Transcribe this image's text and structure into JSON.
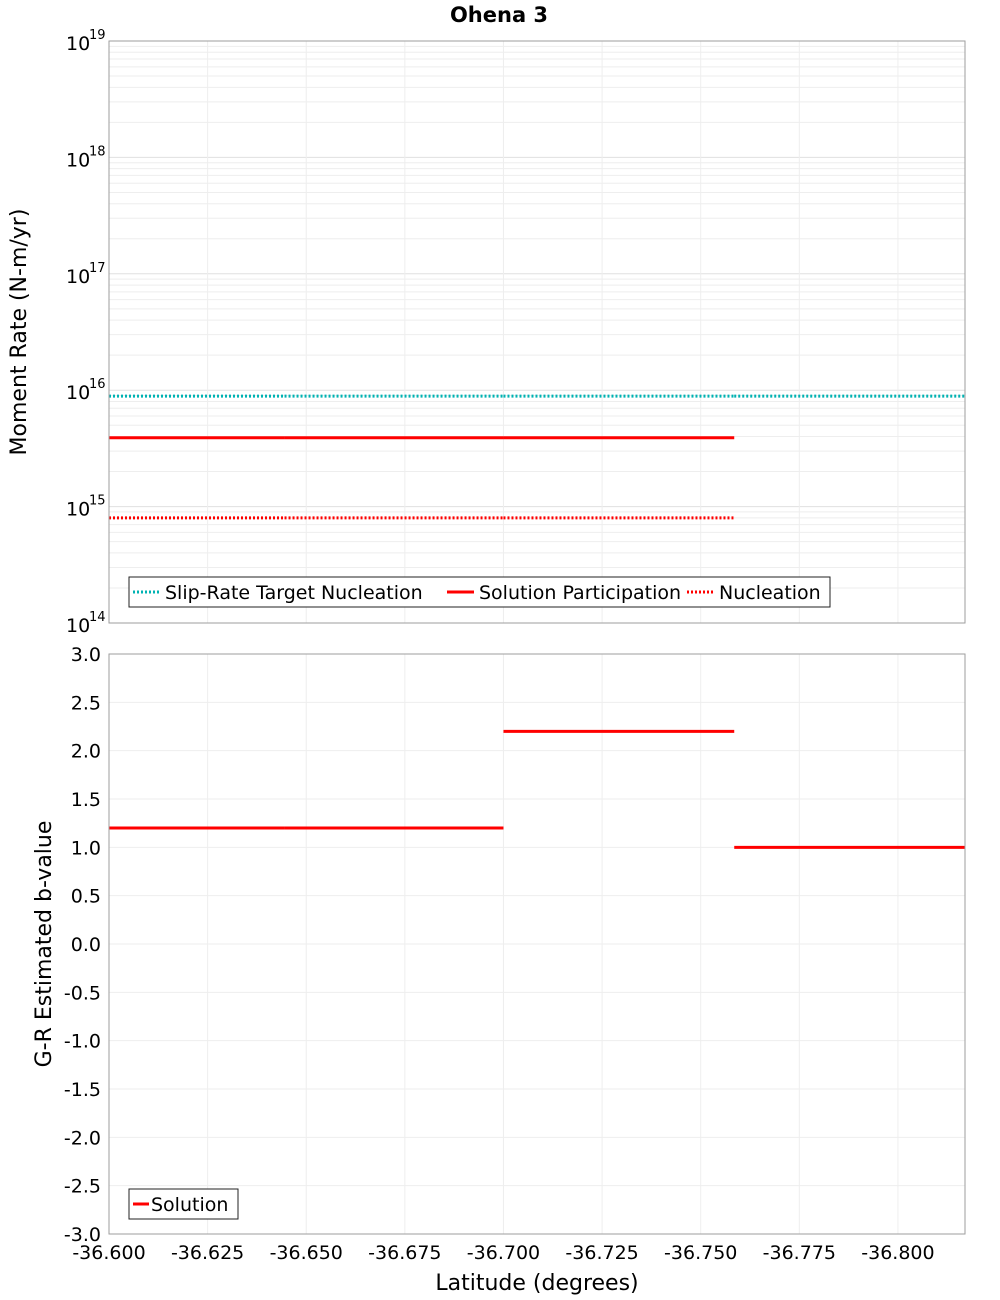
{
  "chart_data": [
    {
      "type": "line",
      "title": "Ohena 3",
      "xlabel": "Latitude (degrees)",
      "ylabel": "Moment Rate (N-m/yr)",
      "yscale": "log",
      "xlim": [
        -36.6,
        -36.817
      ],
      "ylim": [
        100000000000000.0,
        1e+19
      ],
      "ytick_base": "10",
      "yticks": [
        {
          "value": 100000000000000.0,
          "exp": "14"
        },
        {
          "value": 1000000000000000.0,
          "exp": "15"
        },
        {
          "value": 1e+16,
          "exp": "16"
        },
        {
          "value": 1e+17,
          "exp": "17"
        },
        {
          "value": 1e+18,
          "exp": "18"
        },
        {
          "value": 1e+19,
          "exp": "19"
        }
      ],
      "legend_position": "bottom-left",
      "series": [
        {
          "name": "Slip-Rate Target Nucleation",
          "color": "#00b3b3",
          "style": "dotted",
          "segments": [
            {
              "x": [
                -36.6,
                -36.6445
              ],
              "y": 8900000000000000.0
            },
            {
              "x": [
                -36.6445,
                -36.7
              ],
              "y": 8900000000000000.0
            },
            {
              "x": [
                -36.7,
                -36.7585
              ],
              "y": 8900000000000000.0
            },
            {
              "x": [
                -36.7585,
                -36.817
              ],
              "y": 8900000000000000.0
            }
          ]
        },
        {
          "name": "Solution Participation",
          "color": "#ff0000",
          "style": "solid",
          "segments": [
            {
              "x": [
                -36.6,
                -36.6445
              ],
              "y": 3900000000000000.0
            },
            {
              "x": [
                -36.6445,
                -36.7
              ],
              "y": 3900000000000000.0
            },
            {
              "x": [
                -36.7,
                -36.7585
              ],
              "y": 3900000000000000.0
            }
          ]
        },
        {
          "name": "Nucleation",
          "color": "#ff0000",
          "style": "dotted",
          "segments": [
            {
              "x": [
                -36.6,
                -36.6445
              ],
              "y": 800000000000000.0
            },
            {
              "x": [
                -36.6445,
                -36.7
              ],
              "y": 800000000000000.0
            },
            {
              "x": [
                -36.7,
                -36.7585
              ],
              "y": 800000000000000.0
            }
          ]
        }
      ]
    },
    {
      "type": "line",
      "title": "",
      "xlabel": "Latitude (degrees)",
      "ylabel": "G-R Estimated b-value",
      "xlim": [
        -36.6,
        -36.817
      ],
      "ylim": [
        -3.0,
        3.0
      ],
      "yticks": [
        "3.0",
        "2.5",
        "2.0",
        "1.5",
        "1.0",
        "0.5",
        "0.0",
        "-0.5",
        "-1.0",
        "-1.5",
        "-2.0",
        "-2.5",
        "-3.0"
      ],
      "xticks": [
        "-36.600",
        "-36.625",
        "-36.650",
        "-36.675",
        "-36.700",
        "-36.725",
        "-36.750",
        "-36.775",
        "-36.800"
      ],
      "legend_position": "bottom-left",
      "series": [
        {
          "name": "Solution",
          "color": "#ff0000",
          "style": "solid",
          "segments": [
            {
              "x": [
                -36.6,
                -36.6445
              ],
              "y": 1.2
            },
            {
              "x": [
                -36.6445,
                -36.7
              ],
              "y": 1.2
            },
            {
              "x": [
                -36.7,
                -36.7585
              ],
              "y": 2.2
            },
            {
              "x": [
                -36.7585,
                -36.817
              ],
              "y": 1.0
            }
          ]
        }
      ]
    }
  ]
}
